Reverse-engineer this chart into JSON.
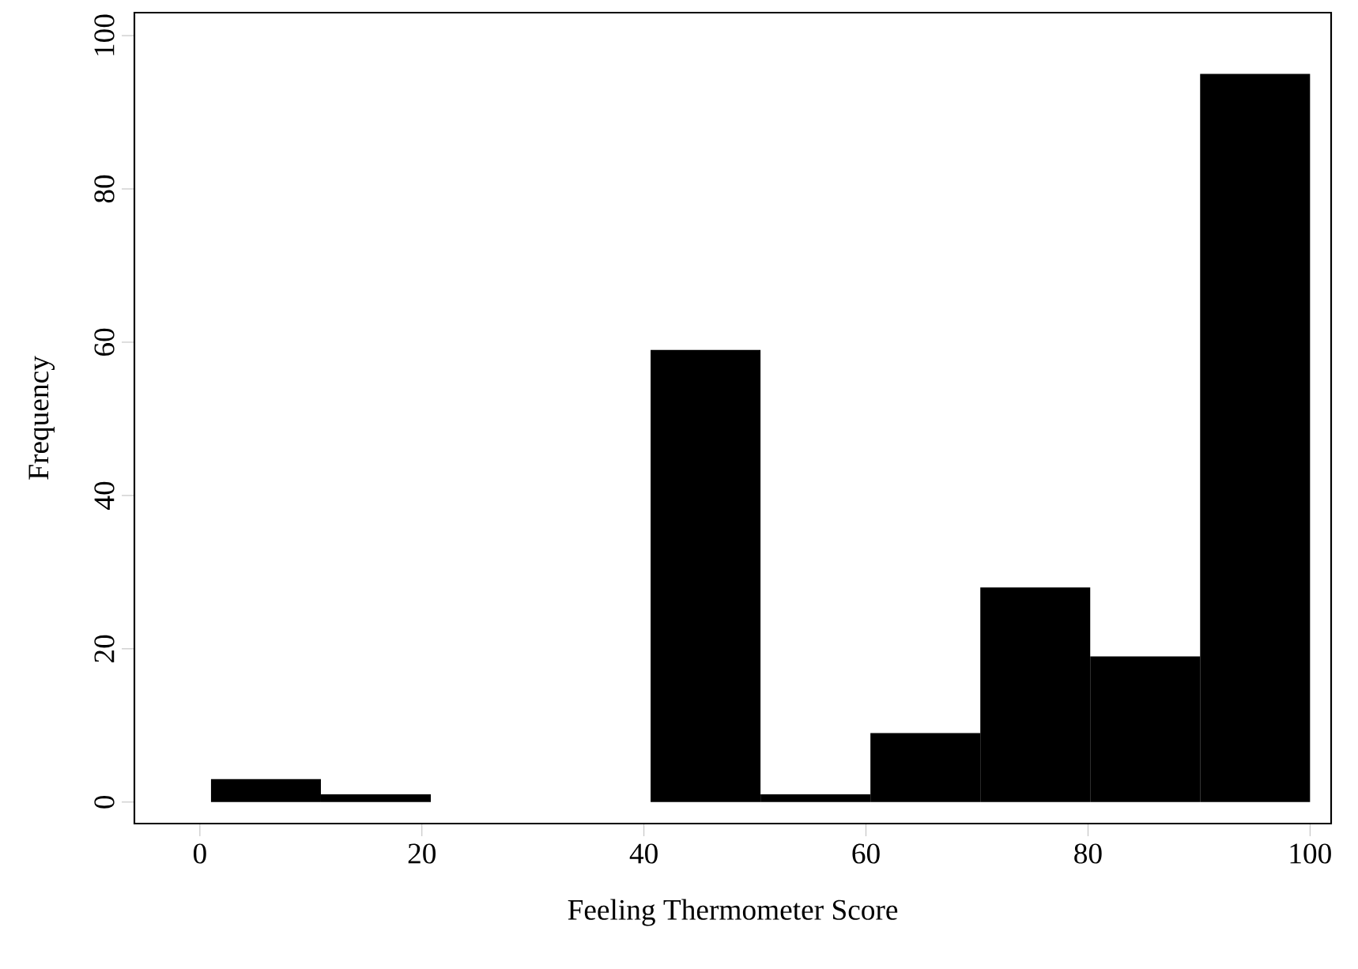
{
  "chart_data": {
    "type": "histogram",
    "xlabel": "Feeling Thermometer Score",
    "ylabel": "Frequency",
    "bins": [
      1,
      10.9,
      20.8,
      30.7,
      40.6,
      50.5,
      60.4,
      70.3,
      80.2,
      90.1,
      100
    ],
    "values": [
      3,
      1,
      0,
      0,
      59,
      1,
      9,
      28,
      19,
      95
    ],
    "color": "#000000",
    "xlim": [
      -5.9,
      101.9
    ],
    "ylim": [
      -2.8,
      103
    ],
    "xticks": [
      0,
      20,
      40,
      60,
      80,
      100
    ],
    "yticks": [
      0,
      20,
      40,
      60,
      80,
      100
    ]
  }
}
